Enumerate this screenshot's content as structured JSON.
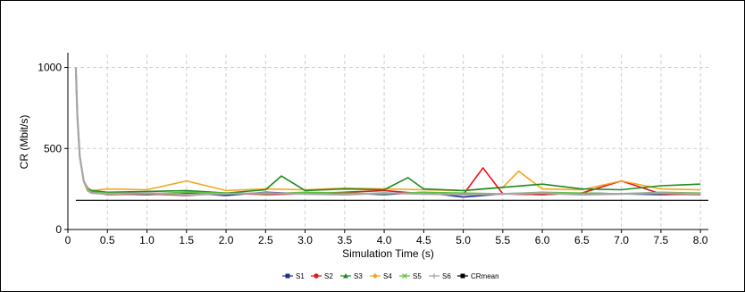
{
  "chart_data": {
    "type": "line",
    "title": "",
    "xlabel": "Simulation Time (s)",
    "ylabel": "CR (Mbit/s)",
    "xlim": [
      0,
      8.1
    ],
    "ylim": [
      0,
      1080
    ],
    "xticks": [
      "0",
      "0.5",
      "1.0",
      "1.5",
      "2.0",
      "2.5",
      "3.0",
      "3.5",
      "4.0",
      "4.5",
      "5.0",
      "5.5",
      "6.0",
      "6.5",
      "7.0",
      "7.5",
      "8.0"
    ],
    "xtick_values": [
      0,
      0.5,
      1.0,
      1.5,
      2.0,
      2.5,
      3.0,
      3.5,
      4.0,
      4.5,
      5.0,
      5.5,
      6.0,
      6.5,
      7.0,
      7.5,
      8.0
    ],
    "yticks": [
      "0",
      "500",
      "1000"
    ],
    "ytick_values": [
      0,
      500,
      1000
    ],
    "grid": true,
    "legend_position": "bottom-center",
    "series": [
      {
        "name": "S1",
        "color": "#1f2f8f",
        "marker": "square",
        "x": [
          0.1,
          0.12,
          0.15,
          0.2,
          0.25,
          0.3,
          0.5,
          1.0,
          1.5,
          2.0,
          2.5,
          3.0,
          3.5,
          4.0,
          4.5,
          5.0,
          5.5,
          6.0,
          6.5,
          7.0,
          7.5,
          8.0
        ],
        "y": [
          1000,
          700,
          450,
          300,
          250,
          230,
          220,
          215,
          225,
          210,
          230,
          220,
          225,
          215,
          230,
          200,
          220,
          215,
          225,
          220,
          215,
          220
        ]
      },
      {
        "name": "S2",
        "color": "#e8141c",
        "marker": "circle",
        "x": [
          0.1,
          0.12,
          0.15,
          0.2,
          0.25,
          0.3,
          0.5,
          1.0,
          1.5,
          2.0,
          2.5,
          3.0,
          3.5,
          4.0,
          4.5,
          5.0,
          5.25,
          5.5,
          6.0,
          6.5,
          7.0,
          7.5,
          8.0
        ],
        "y": [
          1000,
          700,
          450,
          300,
          250,
          230,
          215,
          220,
          210,
          225,
          215,
          220,
          230,
          240,
          220,
          215,
          380,
          220,
          215,
          225,
          300,
          220,
          215
        ]
      },
      {
        "name": "S3",
        "color": "#1f8a1f",
        "marker": "triangle",
        "x": [
          0.1,
          0.12,
          0.15,
          0.2,
          0.25,
          0.3,
          0.5,
          1.0,
          1.5,
          2.0,
          2.5,
          2.7,
          3.0,
          3.5,
          4.0,
          4.3,
          4.5,
          5.0,
          5.5,
          6.0,
          6.5,
          7.0,
          7.5,
          8.0
        ],
        "y": [
          1000,
          700,
          450,
          300,
          250,
          240,
          230,
          235,
          240,
          225,
          245,
          330,
          240,
          250,
          245,
          320,
          250,
          240,
          260,
          280,
          250,
          245,
          270,
          280
        ]
      },
      {
        "name": "S4",
        "color": "#f5a51c",
        "marker": "diamond",
        "x": [
          0.1,
          0.12,
          0.15,
          0.2,
          0.25,
          0.3,
          0.5,
          1.0,
          1.5,
          2.0,
          2.5,
          3.0,
          3.5,
          4.0,
          4.5,
          5.0,
          5.5,
          5.7,
          6.0,
          6.5,
          7.0,
          7.5,
          8.0
        ],
        "y": [
          1000,
          700,
          450,
          300,
          260,
          240,
          250,
          245,
          300,
          240,
          250,
          245,
          255,
          250,
          245,
          240,
          260,
          360,
          250,
          245,
          300,
          250,
          245
        ]
      },
      {
        "name": "S5",
        "color": "#5fbf3f",
        "marker": "x",
        "x": [
          0.1,
          0.12,
          0.15,
          0.2,
          0.25,
          0.3,
          0.5,
          1.0,
          1.5,
          2.0,
          2.5,
          3.0,
          3.5,
          4.0,
          4.5,
          5.0,
          5.5,
          6.0,
          6.5,
          7.0,
          7.5,
          8.0
        ],
        "y": [
          1000,
          700,
          450,
          300,
          250,
          230,
          225,
          220,
          230,
          225,
          220,
          230,
          225,
          220,
          230,
          225,
          220,
          230,
          225,
          220,
          230,
          225
        ]
      },
      {
        "name": "S6",
        "color": "#a6a6a6",
        "marker": "plus",
        "x": [
          0.1,
          0.12,
          0.15,
          0.2,
          0.25,
          0.3,
          0.5,
          1.0,
          1.5,
          2.0,
          2.5,
          3.0,
          3.5,
          4.0,
          4.5,
          5.0,
          5.5,
          6.0,
          6.5,
          7.0,
          7.5,
          8.0
        ],
        "y": [
          1000,
          700,
          450,
          300,
          240,
          225,
          220,
          225,
          215,
          220,
          225,
          220,
          215,
          225,
          220,
          215,
          220,
          225,
          215,
          220,
          225,
          220
        ]
      },
      {
        "name": "CRmean",
        "color": "#000000",
        "marker": "square",
        "x": [
          0.1,
          8.1
        ],
        "y": [
          180,
          180
        ]
      }
    ]
  }
}
